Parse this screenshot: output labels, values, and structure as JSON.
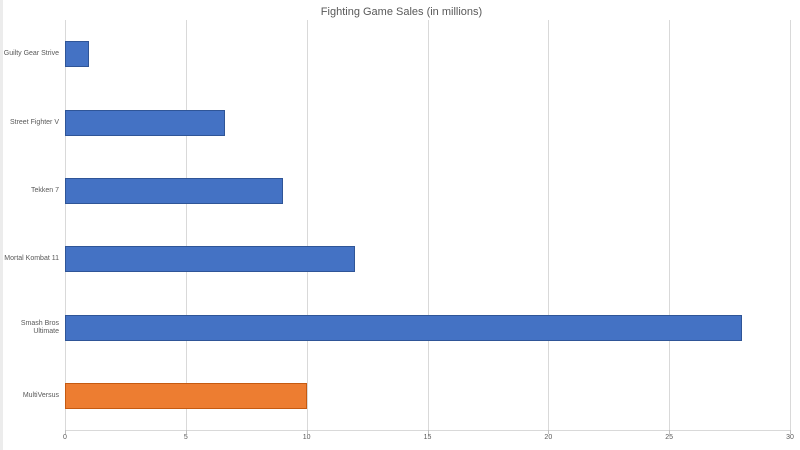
{
  "page": {
    "background": "#ffffff"
  },
  "chart_data": {
    "type": "bar",
    "orientation": "horizontal",
    "title": "Fighting Game Sales (in millions)",
    "categories": [
      "Guilty Gear Strive",
      "Street Fighter V",
      "Tekken 7",
      "Mortal Kombat 11",
      "Smash Bros Ultimate",
      "MultiVersus"
    ],
    "values": [
      1,
      6.6,
      9,
      12,
      28,
      10
    ],
    "bar_fill_colors": [
      "#4472C4",
      "#4472C4",
      "#4472C4",
      "#4472C4",
      "#4472C4",
      "#ED7D31"
    ],
    "bar_border_colors": [
      "#2F5597",
      "#2F5597",
      "#2F5597",
      "#2F5597",
      "#2F5597",
      "#C55A11"
    ],
    "xlabel": "",
    "ylabel": "",
    "xlim": [
      0,
      30
    ],
    "x_ticks": [
      0,
      5,
      10,
      15,
      20,
      25,
      30
    ],
    "grid": "vertical",
    "legend_position": "none",
    "colors": {
      "gridline": "#d9d9d9",
      "axis_line": "#d9d9d9",
      "tick_mark": "#bfbfbf",
      "axis_text": "#595959",
      "title_text": "#595959"
    }
  }
}
